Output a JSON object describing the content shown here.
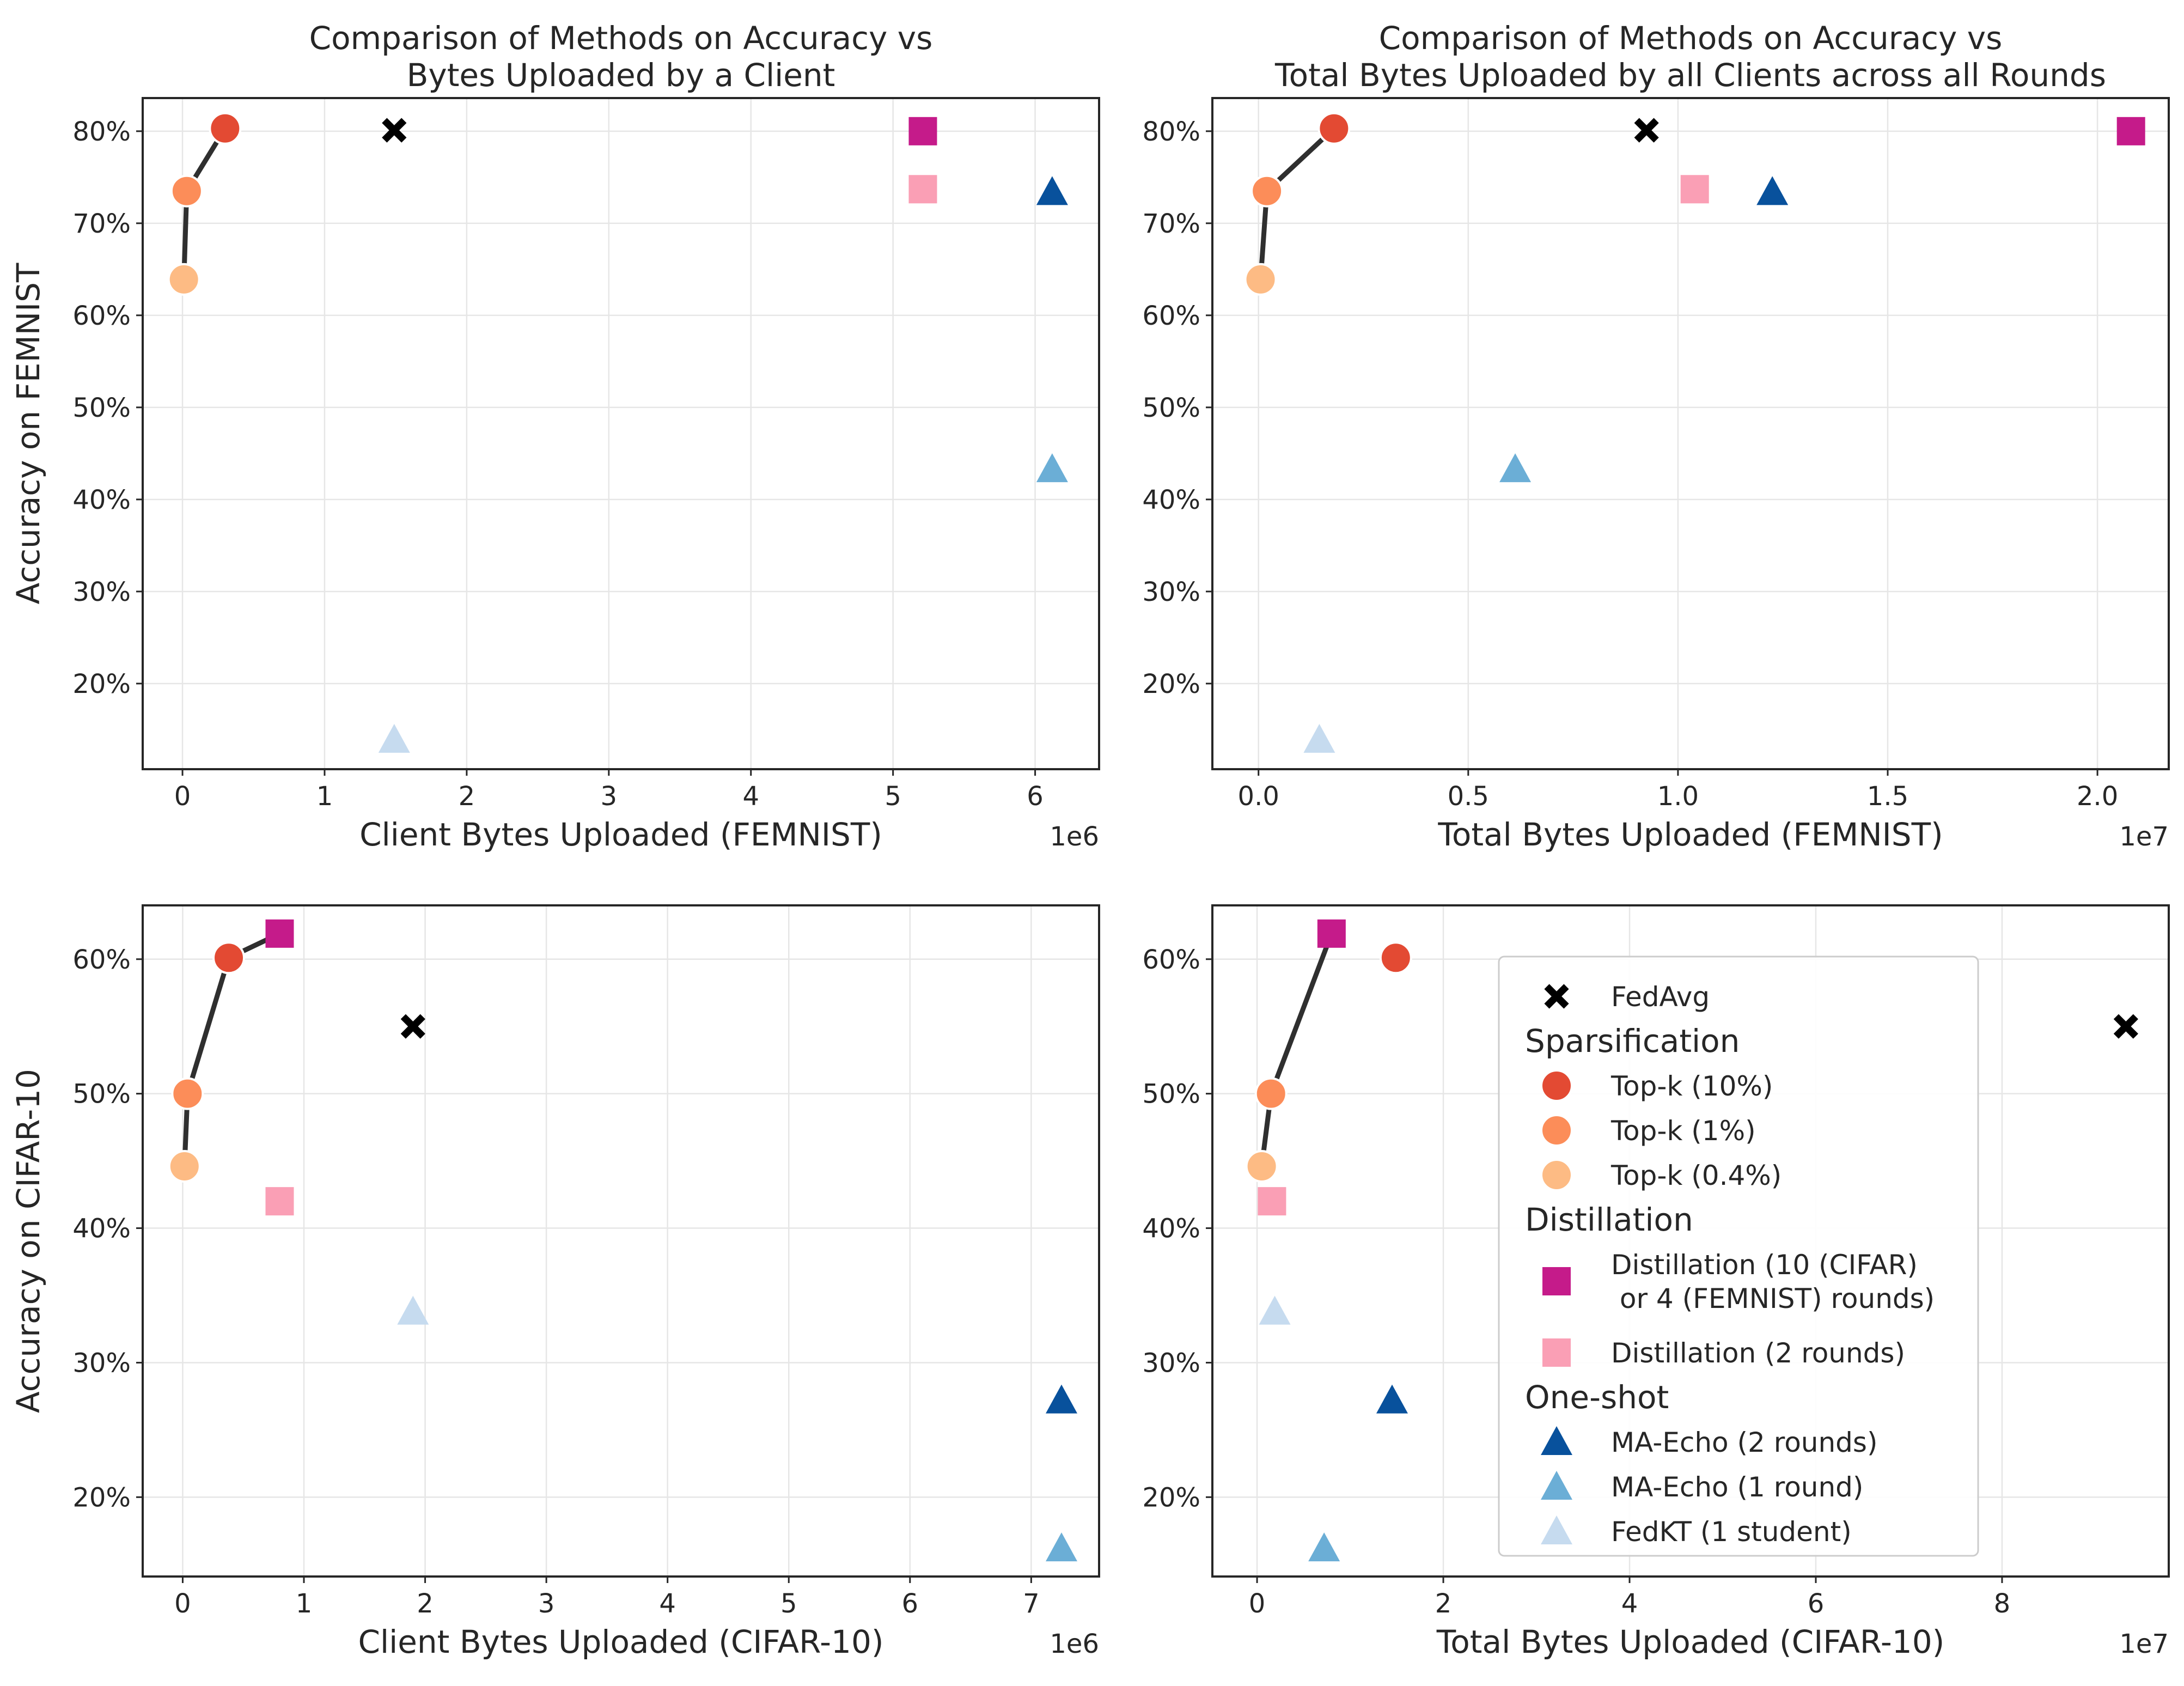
{
  "colors": {
    "FedAvg": "#000000",
    "Top-k (10%)": "#e34a33",
    "Top-k (1%)": "#fc8d59",
    "Top-k (0.4%)": "#fdbb84",
    "Distillation (10 (CIFAR)\n or 4 (FEMNIST) rounds)": "#c51b8a",
    "Distillation (2 rounds)": "#fa9fb5",
    "MA-Echo (2 rounds)": "#08519c",
    "MA-Echo (1 round)": "#6baed6",
    "FedKT (1 student)": "#c6dbef",
    "line": "#2f2f2f",
    "grid": "#e6e6e6"
  },
  "legend": {
    "placement": "center-right of bottom-right panel",
    "groups": [
      {
        "title": "",
        "items": [
          {
            "label": "FedAvg",
            "marker": "x"
          }
        ]
      },
      {
        "title": "Sparsification",
        "items": [
          {
            "label": "Top-k (10%)",
            "marker": "circle"
          },
          {
            "label": "Top-k (1%)",
            "marker": "circle"
          },
          {
            "label": "Top-k (0.4%)",
            "marker": "circle"
          }
        ]
      },
      {
        "title": "Distillation",
        "items": [
          {
            "label": "Distillation (10 (CIFAR)\n or 4 (FEMNIST) rounds)",
            "marker": "square"
          },
          {
            "label": "Distillation (2 rounds)",
            "marker": "square"
          }
        ]
      },
      {
        "title": "One-shot",
        "items": [
          {
            "label": "MA-Echo (2 rounds)",
            "marker": "triangle"
          },
          {
            "label": "MA-Echo (1 round)",
            "marker": "triangle"
          },
          {
            "label": "FedKT (1 student)",
            "marker": "triangle"
          }
        ]
      }
    ]
  },
  "chart_data": [
    {
      "type": "scatter",
      "title": "Comparison of Methods on Accuracy vs\nBytes Uploaded by a Client",
      "xlabel": "Client Bytes Uploaded (FEMNIST)",
      "ylabel": "Accuracy on FEMNIST",
      "x_offset_label": "1e6",
      "x_scale": 1000000,
      "xlim": [
        -0.28,
        6.45
      ],
      "ylim": [
        10.7,
        83.6
      ],
      "xticks": [
        0,
        1,
        2,
        3,
        4,
        5,
        6
      ],
      "xtick_labels": [
        "0",
        "1",
        "2",
        "3",
        "4",
        "5",
        "6"
      ],
      "yticks": [
        20,
        30,
        40,
        50,
        60,
        70,
        80
      ],
      "ytick_labels": [
        "20%",
        "30%",
        "40%",
        "50%",
        "60%",
        "70%",
        "80%"
      ],
      "grid": true,
      "points": [
        {
          "series": "FedAvg",
          "x": 1.49,
          "y": 80.1
        },
        {
          "series": "Top-k (10%)",
          "x": 0.3,
          "y": 80.3
        },
        {
          "series": "Top-k (1%)",
          "x": 0.03,
          "y": 73.5
        },
        {
          "series": "Top-k (0.4%)",
          "x": 0.01,
          "y": 63.9
        },
        {
          "series": "Distillation (10 (CIFAR)\n or 4 (FEMNIST) rounds)",
          "x": 5.21,
          "y": 80.0
        },
        {
          "series": "Distillation (2 rounds)",
          "x": 5.21,
          "y": 73.7
        },
        {
          "series": "MA-Echo (2 rounds)",
          "x": 6.12,
          "y": 73.4
        },
        {
          "series": "MA-Echo (1 round)",
          "x": 6.12,
          "y": 43.3
        },
        {
          "series": "FedKT (1 student)",
          "x": 1.49,
          "y": 13.9
        }
      ],
      "pareto_line": [
        [
          0.01,
          63.9
        ],
        [
          0.03,
          73.5
        ],
        [
          0.3,
          80.3
        ]
      ]
    },
    {
      "type": "scatter",
      "title": "Comparison of Methods on Accuracy vs\nTotal Bytes Uploaded by all Clients across all Rounds",
      "xlabel": "Total Bytes Uploaded (FEMNIST)",
      "ylabel": "",
      "x_offset_label": "1e7",
      "x_scale": 10000000,
      "xlim": [
        -0.11,
        2.17
      ],
      "ylim": [
        10.7,
        83.6
      ],
      "xticks": [
        0.0,
        0.5,
        1.0,
        1.5,
        2.0
      ],
      "xtick_labels": [
        "0.0",
        "0.5",
        "1.0",
        "1.5",
        "2.0"
      ],
      "yticks": [
        20,
        30,
        40,
        50,
        60,
        70,
        80
      ],
      "ytick_labels": [
        "20%",
        "30%",
        "40%",
        "50%",
        "60%",
        "70%",
        "80%"
      ],
      "grid": true,
      "points": [
        {
          "series": "FedAvg",
          "x": 0.925,
          "y": 80.1
        },
        {
          "series": "Top-k (10%)",
          "x": 0.18,
          "y": 80.3
        },
        {
          "series": "Top-k (1%)",
          "x": 0.02,
          "y": 73.5
        },
        {
          "series": "Top-k (0.4%)",
          "x": 0.005,
          "y": 63.9
        },
        {
          "series": "Distillation (10 (CIFAR)\n or 4 (FEMNIST) rounds)",
          "x": 2.08,
          "y": 80.0
        },
        {
          "series": "Distillation (2 rounds)",
          "x": 1.04,
          "y": 73.7
        },
        {
          "series": "MA-Echo (2 rounds)",
          "x": 1.225,
          "y": 73.4
        },
        {
          "series": "MA-Echo (1 round)",
          "x": 0.612,
          "y": 43.3
        },
        {
          "series": "FedKT (1 student)",
          "x": 0.145,
          "y": 13.9
        }
      ],
      "pareto_line": [
        [
          0.005,
          63.9
        ],
        [
          0.02,
          73.5
        ],
        [
          0.18,
          80.3
        ]
      ]
    },
    {
      "type": "scatter",
      "title": "",
      "xlabel": "Client Bytes Uploaded (CIFAR-10)",
      "ylabel": "Accuracy on CIFAR-10",
      "x_offset_label": "1e6",
      "x_scale": 1000000,
      "xlim": [
        -0.33,
        7.56
      ],
      "ylim": [
        14.1,
        64.0
      ],
      "xticks": [
        0,
        1,
        2,
        3,
        4,
        5,
        6,
        7
      ],
      "xtick_labels": [
        "0",
        "1",
        "2",
        "3",
        "4",
        "5",
        "6",
        "7"
      ],
      "yticks": [
        20,
        30,
        40,
        50,
        60
      ],
      "ytick_labels": [
        "20%",
        "30%",
        "40%",
        "50%",
        "60%"
      ],
      "grid": true,
      "points": [
        {
          "series": "FedAvg",
          "x": 1.9,
          "y": 55.0
        },
        {
          "series": "Top-k (10%)",
          "x": 0.38,
          "y": 60.1
        },
        {
          "series": "Top-k (1%)",
          "x": 0.04,
          "y": 50.0
        },
        {
          "series": "Top-k (0.4%)",
          "x": 0.015,
          "y": 44.6
        },
        {
          "series": "Distillation (10 (CIFAR)\n or 4 (FEMNIST) rounds)",
          "x": 0.8,
          "y": 61.9
        },
        {
          "series": "Distillation (2 rounds)",
          "x": 0.8,
          "y": 42.0
        },
        {
          "series": "MA-Echo (2 rounds)",
          "x": 7.25,
          "y": 27.2
        },
        {
          "series": "MA-Echo (1 round)",
          "x": 7.25,
          "y": 16.2
        },
        {
          "series": "FedKT (1 student)",
          "x": 1.9,
          "y": 33.8
        }
      ],
      "pareto_line": [
        [
          0.015,
          44.6
        ],
        [
          0.04,
          50.0
        ],
        [
          0.38,
          60.1
        ],
        [
          0.8,
          61.9
        ]
      ]
    },
    {
      "type": "scatter",
      "title": "",
      "xlabel": "Total Bytes Uploaded (CIFAR-10)",
      "ylabel": "",
      "x_offset_label": "1e7",
      "x_scale": 10000000,
      "xlim": [
        -0.48,
        9.79
      ],
      "ylim": [
        14.1,
        64.0
      ],
      "xticks": [
        0,
        2,
        4,
        6,
        8
      ],
      "xtick_labels": [
        "0",
        "2",
        "4",
        "6",
        "8"
      ],
      "yticks": [
        20,
        30,
        40,
        50,
        60
      ],
      "ytick_labels": [
        "20%",
        "30%",
        "40%",
        "50%",
        "60%"
      ],
      "grid": true,
      "points": [
        {
          "series": "FedAvg",
          "x": 9.33,
          "y": 55.0
        },
        {
          "series": "Top-k (10%)",
          "x": 1.49,
          "y": 60.1
        },
        {
          "series": "Top-k (1%)",
          "x": 0.15,
          "y": 50.0
        },
        {
          "series": "Top-k (0.4%)",
          "x": 0.05,
          "y": 44.6
        },
        {
          "series": "Distillation (10 (CIFAR)\n or 4 (FEMNIST) rounds)",
          "x": 0.8,
          "y": 61.9
        },
        {
          "series": "Distillation (2 rounds)",
          "x": 0.16,
          "y": 42.0
        },
        {
          "series": "MA-Echo (2 rounds)",
          "x": 1.45,
          "y": 27.2
        },
        {
          "series": "MA-Echo (1 round)",
          "x": 0.72,
          "y": 16.2
        },
        {
          "series": "FedKT (1 student)",
          "x": 0.19,
          "y": 33.8
        }
      ],
      "pareto_line": [
        [
          0.05,
          44.6
        ],
        [
          0.15,
          50.0
        ],
        [
          0.8,
          61.9
        ]
      ]
    }
  ]
}
